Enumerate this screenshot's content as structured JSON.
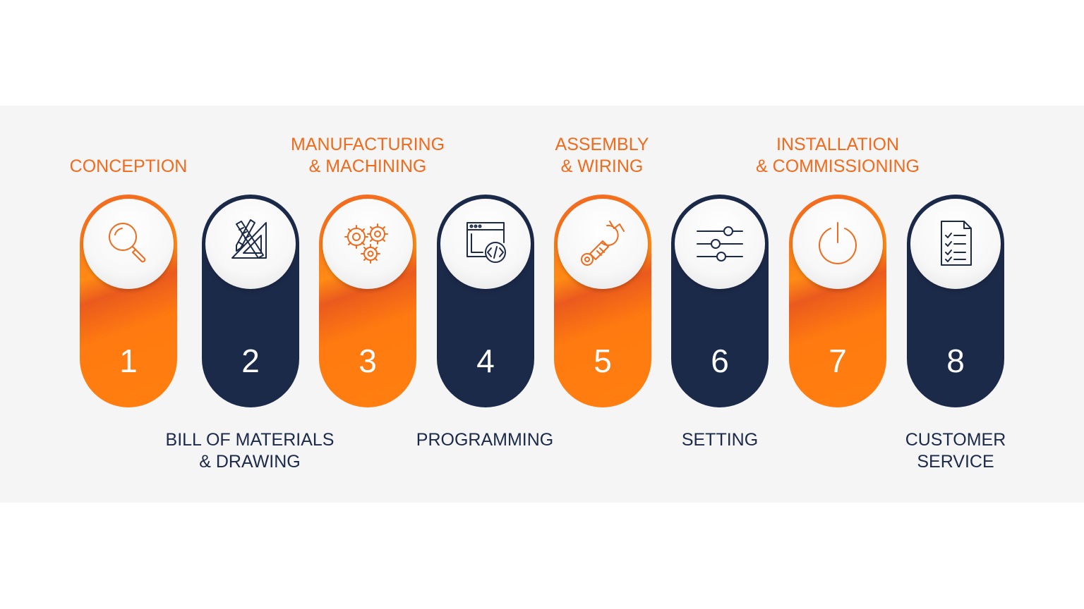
{
  "colors": {
    "accent": "#f26a1b",
    "navy": "#1c2a4a",
    "band": "#f5f5f5"
  },
  "steps": [
    {
      "number": "1",
      "label": "CONCEPTION",
      "icon": "magnifier-icon",
      "color": "orange",
      "label_position": "top"
    },
    {
      "number": "2",
      "label": "BILL OF MATERIALS\n& DRAWING",
      "icon": "drafting-tools-icon",
      "color": "navy",
      "label_position": "bottom"
    },
    {
      "number": "3",
      "label": "MANUFACTURING\n& MACHINING",
      "icon": "gears-icon",
      "color": "orange",
      "label_position": "top"
    },
    {
      "number": "4",
      "label": "PROGRAMMING",
      "icon": "code-window-icon",
      "color": "navy",
      "label_position": "bottom"
    },
    {
      "number": "5",
      "label": "ASSEMBLY\n& WIRING",
      "icon": "wrench-icon",
      "color": "orange",
      "label_position": "top"
    },
    {
      "number": "6",
      "label": "SETTING",
      "icon": "sliders-icon",
      "color": "navy",
      "label_position": "bottom"
    },
    {
      "number": "7",
      "label": "INSTALLATION\n& COMMISSIONING",
      "icon": "power-icon",
      "color": "orange",
      "label_position": "top"
    },
    {
      "number": "8",
      "label": "CUSTOMER\nSERVICE",
      "icon": "checklist-document-icon",
      "color": "navy",
      "label_position": "bottom"
    }
  ]
}
